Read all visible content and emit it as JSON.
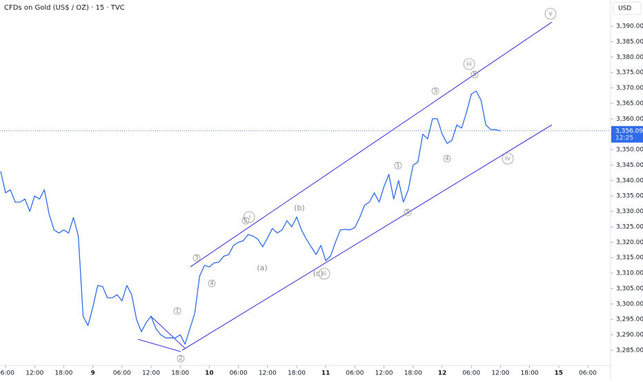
{
  "chart_data": {
    "type": "line",
    "title": "CFDs on Gold (US$ / OZ) · 15 · TVC",
    "currency": "USD",
    "color": "#2f6bea",
    "x": [
      5,
      6,
      7,
      8,
      9,
      10,
      11,
      12,
      13,
      14,
      15,
      16,
      17,
      18,
      19,
      20,
      21,
      22,
      23,
      24,
      25,
      26,
      27,
      28,
      29,
      30,
      31,
      32,
      33,
      34,
      35,
      36,
      37,
      38,
      39,
      40,
      41,
      42,
      43,
      44,
      45,
      46,
      47,
      48,
      49,
      50,
      51,
      52,
      53,
      54,
      55,
      56,
      57,
      58,
      59,
      60,
      61,
      62,
      63,
      64,
      65,
      66,
      67,
      68,
      69,
      70,
      71,
      72,
      73,
      74,
      75,
      76,
      77,
      78,
      79,
      80,
      81,
      82,
      83,
      84,
      85,
      86,
      87,
      88,
      89,
      90,
      91,
      92,
      93,
      94,
      95,
      96,
      97,
      98,
      99,
      100,
      101,
      102,
      103,
      104,
      105,
      106,
      107,
      108
    ],
    "values": [
      3343,
      3336,
      3337,
      3333,
      3333,
      3334,
      3330,
      3335,
      3334,
      3337,
      3329,
      3324,
      3323,
      3324,
      3323,
      3328,
      3322,
      3296,
      3293,
      3299,
      3306,
      3305.7,
      3302,
      3302,
      3303,
      3301,
      3306,
      3303,
      3295,
      3291,
      3294,
      3296,
      3292,
      3290,
      3289,
      3289,
      3289,
      3290,
      3287,
      3292,
      3297,
      3309,
      3312.5,
      3312,
      3313.3,
      3313.6,
      3315.5,
      3316,
      3319,
      3320,
      3320.5,
      3322.5,
      3322,
      3321,
      3318.5,
      3321.4,
      3324.5,
      3323,
      3324,
      3327,
      3325,
      3328.2,
      3324,
      3321,
      3318.5,
      3316,
      3319,
      3314,
      3315.6,
      3320,
      3324,
      3324.2,
      3324,
      3324.8,
      3328,
      3332,
      3333,
      3336,
      3333,
      3338,
      3342,
      3334,
      3340,
      3333,
      3337,
      3345,
      3346,
      3355,
      3353.5,
      3360,
      3360,
      3355,
      3352,
      3353,
      3358,
      3357,
      3362,
      3368,
      3369,
      3366,
      3358,
      3356.5,
      3356.5,
      3356.09
    ],
    "xlim": [
      4.86,
      130.7
    ],
    "xticks": [
      {
        "value": 6,
        "label": "06:00"
      },
      {
        "value": 12,
        "label": "12:00"
      },
      {
        "value": 18,
        "label": "18:00"
      },
      {
        "value": 24,
        "label": "9"
      },
      {
        "value": 30,
        "label": "06:00"
      },
      {
        "value": 36,
        "label": "12:00"
      },
      {
        "value": 42,
        "label": "18:00"
      },
      {
        "value": 48,
        "label": "10"
      },
      {
        "value": 54,
        "label": "06:00"
      },
      {
        "value": 60,
        "label": "12:00"
      },
      {
        "value": 66,
        "label": "18:00"
      },
      {
        "value": 72,
        "label": "11"
      },
      {
        "value": 78,
        "label": "06:00"
      },
      {
        "value": 84,
        "label": "12:00"
      },
      {
        "value": 90,
        "label": "18:00"
      },
      {
        "value": 96,
        "label": "12"
      },
      {
        "value": 102,
        "label": "06:00"
      },
      {
        "value": 108,
        "label": "12:00"
      },
      {
        "value": 114,
        "label": "18:00"
      },
      {
        "value": 120,
        "label": "15"
      },
      {
        "value": 126,
        "label": "06:00"
      }
    ],
    "ylim": [
      3280.08,
      3398.49
    ],
    "yticks": [
      {
        "value": 3285,
        "label": "3,285.000"
      },
      {
        "value": 3290,
        "label": "3,290.000"
      },
      {
        "value": 3295,
        "label": "3,295.000"
      },
      {
        "value": 3300,
        "label": "3,300.000"
      },
      {
        "value": 3305,
        "label": "3,305.000"
      },
      {
        "value": 3310,
        "label": "3,310.000"
      },
      {
        "value": 3315,
        "label": "3,315.000"
      },
      {
        "value": 3320,
        "label": "3,320.000"
      },
      {
        "value": 3325,
        "label": "3,325.000"
      },
      {
        "value": 3330,
        "label": "3,330.000"
      },
      {
        "value": 3335,
        "label": "3,335.000"
      },
      {
        "value": 3340,
        "label": "3,340.000"
      },
      {
        "value": 3345,
        "label": "3,345.000"
      },
      {
        "value": 3350,
        "label": "3,350.000"
      },
      {
        "value": 3355,
        "label": "3,355.000"
      },
      {
        "value": 3360,
        "label": "3,360.000"
      },
      {
        "value": 3365,
        "label": "3,365.000"
      },
      {
        "value": 3370,
        "label": "3,370.000"
      },
      {
        "value": 3375,
        "label": "3,375.000"
      },
      {
        "value": 3380,
        "label": "3,380.000"
      },
      {
        "value": 3385,
        "label": "3,385.000"
      },
      {
        "value": 3390,
        "label": "3,390.000"
      }
    ],
    "last_price": {
      "value": 3356.09,
      "label": "3,356.090"
    },
    "countdown": "12:25",
    "annotations": [
      "v",
      "iii",
      "5",
      "3",
      "4",
      "iv",
      "1",
      "5",
      "3",
      "4",
      "i",
      "5",
      "(a)",
      "(b)",
      "(c)",
      "ii",
      "1",
      "2"
    ]
  }
}
